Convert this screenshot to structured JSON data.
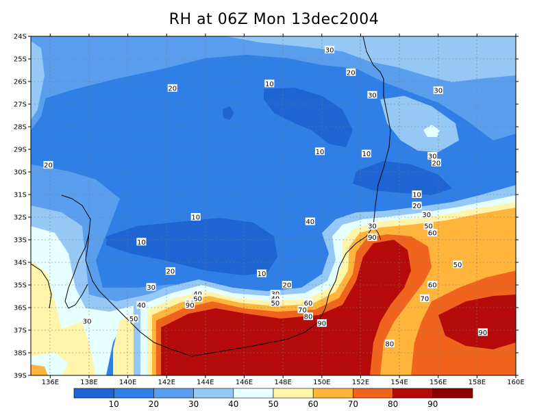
{
  "title": "RH at 06Z Mon 13dec2004",
  "chart_data": {
    "type": "heatmap",
    "variable": "RH",
    "lat_range": [
      -39,
      -24
    ],
    "lon_range": [
      135,
      160
    ],
    "lat_ticks": [
      "24S",
      "25S",
      "26S",
      "27S",
      "28S",
      "29S",
      "30S",
      "31S",
      "32S",
      "33S",
      "34S",
      "35S",
      "36S",
      "37S",
      "38S",
      "39S"
    ],
    "lon_ticks": [
      "136E",
      "138E",
      "140E",
      "142E",
      "144E",
      "146E",
      "148E",
      "150E",
      "152E",
      "154E",
      "156E",
      "158E",
      "160E"
    ],
    "grid": true,
    "colorbar": {
      "levels": [
        "10",
        "20",
        "30",
        "40",
        "50",
        "60",
        "70",
        "80",
        "90"
      ],
      "colors": [
        "#1e64d2",
        "#2f7fe6",
        "#5a9fee",
        "#96c8f5",
        "#e6ffff",
        "#fff5aa",
        "#ffb43c",
        "#f0641e",
        "#b40a0a",
        "#8c0000"
      ]
    },
    "contour_labels": [
      {
        "text": "30",
        "lon": 150.4,
        "lat": -24.6
      },
      {
        "text": "20",
        "lon": 151.5,
        "lat": -25.6
      },
      {
        "text": "10",
        "lon": 147.3,
        "lat": -26.1
      },
      {
        "text": "20",
        "lon": 142.3,
        "lat": -26.3
      },
      {
        "text": "30",
        "lon": 156.0,
        "lat": -26.4
      },
      {
        "text": "30",
        "lon": 152.6,
        "lat": -26.6
      },
      {
        "text": "10",
        "lon": 149.9,
        "lat": -29.1
      },
      {
        "text": "10",
        "lon": 152.3,
        "lat": -29.2
      },
      {
        "text": "30",
        "lon": 155.7,
        "lat": -29.3
      },
      {
        "text": "20",
        "lon": 155.9,
        "lat": -29.6
      },
      {
        "text": "20",
        "lon": 135.9,
        "lat": -29.7
      },
      {
        "text": "10",
        "lon": 154.9,
        "lat": -31.0
      },
      {
        "text": "20",
        "lon": 154.9,
        "lat": -31.5
      },
      {
        "text": "30",
        "lon": 155.4,
        "lat": -31.9
      },
      {
        "text": "40",
        "lon": 149.4,
        "lat": -32.2
      },
      {
        "text": "50",
        "lon": 155.5,
        "lat": -32.4
      },
      {
        "text": "60",
        "lon": 155.7,
        "lat": -32.7
      },
      {
        "text": "30",
        "lon": 152.6,
        "lat": -32.4
      },
      {
        "text": "90",
        "lon": 152.6,
        "lat": -32.9
      },
      {
        "text": "10",
        "lon": 143.5,
        "lat": -32.0
      },
      {
        "text": "10",
        "lon": 140.7,
        "lat": -33.1
      },
      {
        "text": "20",
        "lon": 142.2,
        "lat": -34.4
      },
      {
        "text": "10",
        "lon": 146.9,
        "lat": -34.5
      },
      {
        "text": "50",
        "lon": 157.0,
        "lat": -34.1
      },
      {
        "text": "30",
        "lon": 141.2,
        "lat": -35.1
      },
      {
        "text": "20",
        "lon": 148.2,
        "lat": -35.0
      },
      {
        "text": "30",
        "lon": 147.6,
        "lat": -35.4
      },
      {
        "text": "40",
        "lon": 147.6,
        "lat": -35.6
      },
      {
        "text": "50",
        "lon": 147.6,
        "lat": -35.8
      },
      {
        "text": "60",
        "lon": 155.7,
        "lat": -35.0
      },
      {
        "text": "70",
        "lon": 155.3,
        "lat": -35.6
      },
      {
        "text": "60",
        "lon": 149.3,
        "lat": -35.8
      },
      {
        "text": "70",
        "lon": 149.0,
        "lat": -36.1
      },
      {
        "text": "80",
        "lon": 149.3,
        "lat": -36.4
      },
      {
        "text": "90",
        "lon": 150.0,
        "lat": -36.7
      },
      {
        "text": "40",
        "lon": 140.7,
        "lat": -35.9
      },
      {
        "text": "40",
        "lon": 143.6,
        "lat": -35.4
      },
      {
        "text": "60",
        "lon": 143.6,
        "lat": -35.6
      },
      {
        "text": "80",
        "lon": 143.2,
        "lat": -35.8
      },
      {
        "text": "90",
        "lon": 143.2,
        "lat": -35.9
      },
      {
        "text": "50",
        "lon": 140.3,
        "lat": -36.5
      },
      {
        "text": "30",
        "lon": 137.9,
        "lat": -36.6
      },
      {
        "text": "90",
        "lon": 158.3,
        "lat": -37.1
      },
      {
        "text": "80",
        "lon": 153.5,
        "lat": -37.6
      }
    ]
  }
}
